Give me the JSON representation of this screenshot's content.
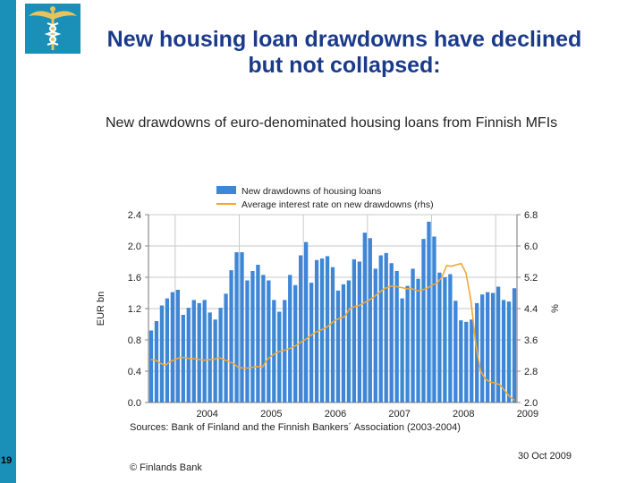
{
  "slide": {
    "title_line1": "New housing loan drawdowns have declined",
    "title_line2": "but not collapsed:",
    "slide_number": "19",
    "copyright": "© Finlands Bank",
    "date": "30 Oct 2009",
    "accent_color": "#1a8fb8",
    "title_color": "#1a3a8a",
    "logo": "caduceus-logo"
  },
  "chart_data": {
    "type": "bar",
    "title": "New drawdowns of euro-denominated housing loans from Finnish MFIs",
    "source": "Sources: Bank of Finland and the Finnish Bankers´ Association (2003-2004)",
    "ylabel": "EUR bn",
    "y2label": "%",
    "ylim": [
      0,
      2.4
    ],
    "y2lim": [
      2.0,
      6.8
    ],
    "yticks": [
      "0.0",
      "0.4",
      "0.8",
      "1.2",
      "1.6",
      "2.0",
      "2.4"
    ],
    "y2ticks": [
      "2.0",
      "2.8",
      "3.6",
      "4.4",
      "5.2",
      "6.0",
      "6.8"
    ],
    "xtick_labels": [
      "2004",
      "2005",
      "2006",
      "2007",
      "2008",
      "2009"
    ],
    "grid": true,
    "legend_position": "top",
    "series": [
      {
        "name": "New drawdowns of housing loans",
        "type": "bar",
        "axis": "left",
        "color": "#3f86d6",
        "values": [
          0.92,
          1.04,
          1.24,
          1.33,
          1.41,
          1.44,
          1.12,
          1.21,
          1.31,
          1.27,
          1.31,
          1.15,
          1.06,
          1.21,
          1.39,
          1.69,
          1.92,
          1.92,
          1.56,
          1.68,
          1.76,
          1.63,
          1.56,
          1.31,
          1.16,
          1.31,
          1.63,
          1.5,
          1.88,
          2.05,
          1.53,
          1.82,
          1.84,
          1.87,
          1.73,
          1.43,
          1.51,
          1.56,
          1.83,
          1.8,
          2.17,
          2.1,
          1.71,
          1.88,
          1.91,
          1.78,
          1.68,
          1.33,
          1.49,
          1.71,
          1.58,
          2.09,
          2.31,
          2.12,
          1.66,
          1.6,
          1.64,
          1.3,
          1.05,
          1.03,
          1.06,
          1.27,
          1.38,
          1.41,
          1.4,
          1.48,
          1.31,
          1.29,
          1.46
        ]
      },
      {
        "name": "Average interest rate on new drawdowns (rhs)",
        "type": "line",
        "axis": "right",
        "color": "#f0a838",
        "values": [
          3.1,
          3.08,
          3.0,
          2.95,
          3.05,
          3.1,
          3.15,
          3.15,
          3.12,
          3.12,
          3.1,
          3.08,
          3.1,
          3.1,
          3.15,
          3.1,
          3.05,
          3.0,
          2.9,
          2.88,
          2.88,
          2.9,
          2.92,
          2.9,
          3.1,
          3.2,
          3.28,
          3.32,
          3.35,
          3.4,
          3.46,
          3.55,
          3.62,
          3.72,
          3.8,
          3.85,
          3.9,
          4.0,
          4.1,
          4.15,
          4.2,
          4.4,
          4.45,
          4.48,
          4.55,
          4.62,
          4.7,
          4.8,
          4.9,
          4.95,
          4.98,
          4.95,
          4.93,
          4.9,
          4.9,
          4.85,
          4.88,
          4.92,
          5.0,
          5.05,
          5.2,
          5.5,
          5.48,
          5.52,
          5.55,
          5.3,
          4.6,
          3.5,
          2.8,
          2.6,
          2.52,
          2.5,
          2.45,
          2.3,
          2.15,
          2.05
        ]
      }
    ]
  }
}
